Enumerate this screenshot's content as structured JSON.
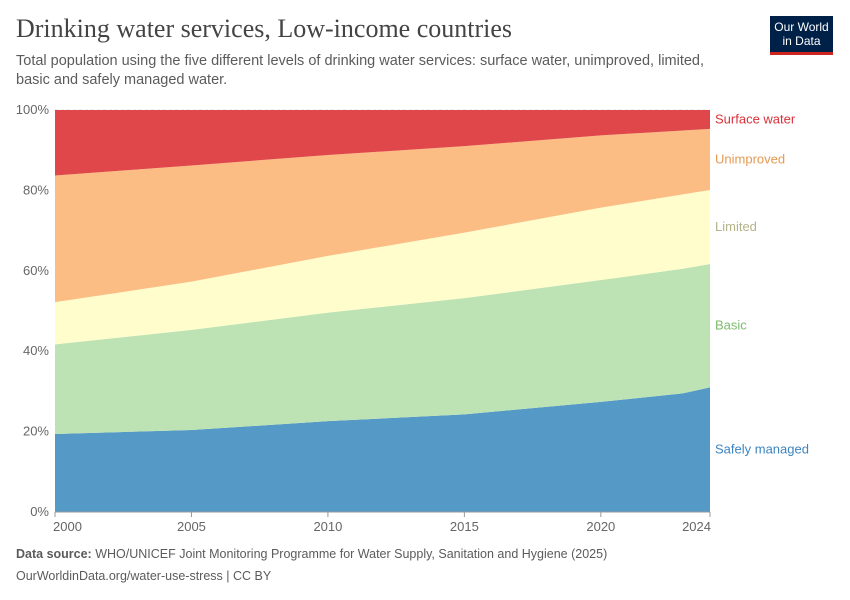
{
  "header": {
    "title": "Drinking water services, Low-income countries",
    "subtitle": "Total population using the five different levels of drinking water services: surface water, unimproved, limited, basic and safely managed water.",
    "logo": "Our World in Data"
  },
  "footer": {
    "source_label": "Data source:",
    "source": "WHO/UNICEF Joint Monitoring Programme for Water Supply, Sanitation and Hygiene (2025)",
    "url": "OurWorldinData.org/water-use-stress | CC BY"
  },
  "chart_data": {
    "type": "area",
    "stacked": true,
    "title": "Drinking water services, Low-income countries",
    "x": [
      2000,
      2005,
      2010,
      2015,
      2020,
      2023,
      2024
    ],
    "xticks": [
      "2000",
      "2005",
      "2010",
      "2015",
      "2020",
      "2024"
    ],
    "yticks": [
      "0%",
      "20%",
      "40%",
      "60%",
      "80%",
      "100%"
    ],
    "ylim": [
      0,
      100
    ],
    "grid": true,
    "legend": "right-labels",
    "series": [
      {
        "name": "Safely managed",
        "color": "#5599c6",
        "label_color": "#3d85c1",
        "values": [
          19.4,
          20.4,
          22.6,
          24.3,
          27.4,
          29.5,
          31.0
        ]
      },
      {
        "name": "Basic",
        "color": "#bde3b4",
        "label_color": "#7dbb6f",
        "values": [
          22.3,
          24.9,
          27.0,
          28.9,
          30.3,
          31.0,
          30.7
        ]
      },
      {
        "name": "Limited",
        "color": "#fefdcb",
        "label_color": "#b5b38a",
        "values": [
          10.5,
          12.0,
          14.1,
          16.3,
          18.0,
          18.5,
          18.4
        ]
      },
      {
        "name": "Unimproved",
        "color": "#fbbd83",
        "label_color": "#e59a52",
        "values": [
          31.5,
          28.9,
          25.1,
          21.5,
          18.0,
          15.9,
          15.2
        ]
      },
      {
        "name": "Surface water",
        "color": "#e0474b",
        "label_color": "#d73239",
        "values": [
          16.3,
          13.8,
          11.2,
          9.0,
          6.3,
          5.1,
          4.7
        ]
      }
    ]
  }
}
